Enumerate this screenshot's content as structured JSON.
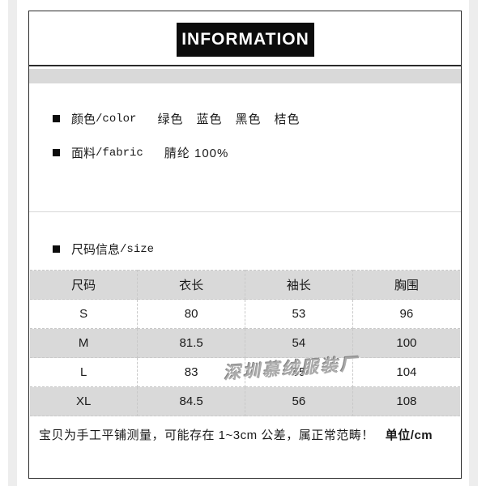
{
  "header": {
    "title": "INFORMATION"
  },
  "bullets": {
    "color": {
      "label_cn": "颜色",
      "label_en": "/color",
      "value": "绿色　蓝色　黑色　桔色"
    },
    "fabric": {
      "label_cn": "面料",
      "label_en": "/fabric",
      "value": "腈纶 100%"
    },
    "size": {
      "label_cn": "尺码信息",
      "label_en": "/size"
    }
  },
  "size_table": {
    "headers": [
      "尺码",
      "衣长",
      "袖长",
      "胸围"
    ],
    "rows": [
      [
        "S",
        "80",
        "53",
        "96"
      ],
      [
        "M",
        "81.5",
        "54",
        "100"
      ],
      [
        "L",
        "83",
        "55",
        "104"
      ],
      [
        "XL",
        "84.5",
        "56",
        "108"
      ]
    ]
  },
  "watermark": "深圳慕绒服装厂",
  "note": {
    "main": "宝贝为手工平铺测量，可能存在 1~3cm 公差，属正常范畴！",
    "unit": "单位/cm"
  },
  "colors": {
    "title_box_black": "#0c0c0c",
    "bar_gray": "#d9d9d9",
    "row_alt_gray": "#d9d9d9",
    "border_black": "#2b2b2b",
    "watermark_gray": "#9d9d9d"
  }
}
